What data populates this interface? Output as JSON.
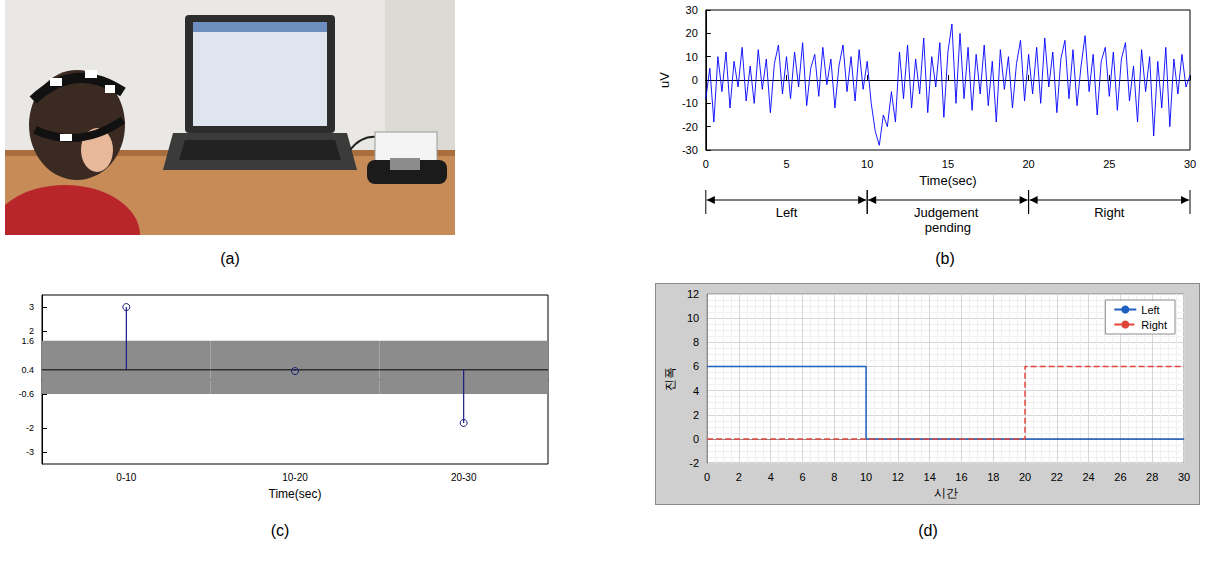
{
  "figure": {
    "labels": [
      "(a)",
      "(b)",
      "(c)",
      "(d)"
    ]
  },
  "chart_data": [
    {
      "type": "line",
      "x_label": "Time(sec)",
      "y_label": "uV",
      "color": "#0000ff",
      "grid": false,
      "x": [
        0,
        0.25,
        0.5,
        0.75,
        1,
        1.25,
        1.5,
        1.75,
        2,
        2.25,
        2.5,
        2.75,
        3,
        3.25,
        3.5,
        3.75,
        4,
        4.25,
        4.5,
        4.75,
        5,
        5.25,
        5.5,
        5.75,
        6,
        6.25,
        6.5,
        6.75,
        7,
        7.25,
        7.5,
        7.75,
        8,
        8.25,
        8.5,
        8.75,
        9,
        9.25,
        9.5,
        9.75,
        10,
        10.25,
        10.5,
        10.75,
        11,
        11.25,
        11.5,
        11.75,
        12,
        12.25,
        12.5,
        12.75,
        13,
        13.25,
        13.5,
        13.75,
        14,
        14.25,
        14.5,
        14.75,
        15,
        15.25,
        15.5,
        15.75,
        16,
        16.25,
        16.5,
        16.75,
        17,
        17.25,
        17.5,
        17.75,
        18,
        18.25,
        18.5,
        18.75,
        19,
        19.25,
        19.5,
        19.75,
        20,
        20.25,
        20.5,
        20.75,
        21,
        21.25,
        21.5,
        21.75,
        22,
        22.25,
        22.5,
        22.75,
        23,
        23.25,
        23.5,
        23.75,
        24,
        24.25,
        24.5,
        24.75,
        25,
        25.25,
        25.5,
        25.75,
        26,
        26.25,
        26.5,
        26.75,
        27,
        27.25,
        27.5,
        27.75,
        28,
        28.25,
        28.5,
        28.75,
        29,
        29.25,
        29.5,
        29.75,
        30
      ],
      "values": [
        -8,
        5,
        -18,
        10,
        -5,
        12,
        -12,
        8,
        -3,
        14,
        -9,
        6,
        -10,
        13,
        -4,
        9,
        -14,
        7,
        15,
        -6,
        10,
        -8,
        12,
        -3,
        16,
        -11,
        5,
        11,
        -7,
        14,
        -2,
        9,
        -12,
        6,
        15,
        -5,
        10,
        -9,
        13,
        -4,
        8,
        -10,
        -22,
        -28,
        -15,
        -20,
        -5,
        -18,
        12,
        -8,
        15,
        -12,
        9,
        -6,
        18,
        -14,
        10,
        -3,
        16,
        -16,
        12,
        24,
        -10,
        20,
        -8,
        14,
        -13,
        11,
        -6,
        15,
        -11,
        8,
        -18,
        13,
        -4,
        10,
        -12,
        7,
        17,
        -9,
        11,
        -6,
        14,
        -10,
        18,
        -3,
        12,
        -14,
        9,
        17,
        -8,
        13,
        -11,
        6,
        19,
        -5,
        11,
        -15,
        8,
        14,
        -7,
        12,
        -13,
        9,
        16,
        -9,
        6,
        -18,
        13,
        -5,
        10,
        -24,
        8,
        -12,
        14,
        -20,
        9,
        -6,
        11,
        -3,
        2
      ],
      "xlim": [
        0,
        30
      ],
      "xticks": [
        0,
        5,
        10,
        15,
        20,
        25,
        30
      ],
      "ylim": [
        -30,
        30
      ],
      "yticks": [
        -30,
        -20,
        -10,
        0,
        10,
        20,
        30
      ],
      "annotations": [
        {
          "text": "Left",
          "start": 0,
          "end": 10
        },
        {
          "text": "Judgement pending",
          "start": 10,
          "end": 20
        },
        {
          "text": "Right",
          "start": 20,
          "end": 30
        }
      ]
    },
    {
      "type": "stem",
      "x_label": "Time(sec)",
      "color": "#1a1a80",
      "marker": "circle",
      "grid": false,
      "categories": [
        "0-10",
        "10-20",
        "20-30"
      ],
      "values": [
        3,
        0.35,
        -1.8
      ],
      "baseline": 0.4,
      "band": [
        -0.6,
        1.6
      ],
      "ylim": [
        -3.5,
        3.5
      ],
      "yticks": [
        -3,
        -2,
        -0.6,
        0.4,
        1.6,
        2,
        3
      ]
    },
    {
      "type": "line",
      "x_label": "시간",
      "y_label": "진폭",
      "grid": true,
      "legend": "upper right",
      "x": [
        0,
        10,
        10,
        20,
        20,
        30
      ],
      "series": [
        {
          "name": "Left",
          "color": "#1f5fbf",
          "line_style": "solid",
          "values": [
            6,
            6,
            0,
            0,
            0,
            0
          ]
        },
        {
          "name": "Right",
          "color": "#e0453a",
          "line_style": "dashed",
          "values": [
            0,
            0,
            0,
            0,
            6,
            6
          ]
        }
      ],
      "xlim": [
        0,
        30
      ],
      "xticks": [
        0,
        2,
        4,
        6,
        8,
        10,
        12,
        14,
        16,
        18,
        20,
        22,
        24,
        26,
        28,
        30
      ],
      "ylim": [
        -2,
        12
      ],
      "yticks": [
        -2,
        0,
        2,
        4,
        6,
        8,
        10,
        12
      ]
    }
  ]
}
